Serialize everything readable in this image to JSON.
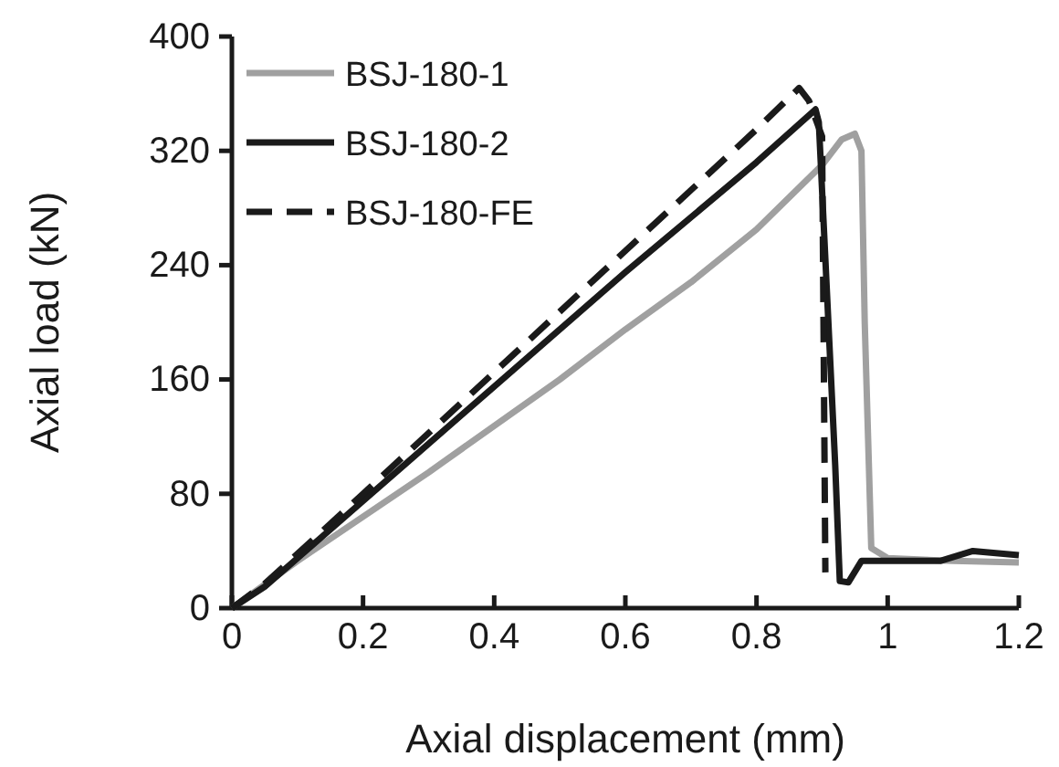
{
  "chart_data": {
    "type": "line",
    "xlabel": "Axial displacement (mm)",
    "ylabel": "Axial load (kN)",
    "xlim": [
      0,
      1.2
    ],
    "xticks": [
      0,
      0.2,
      0.4,
      0.6,
      0.8,
      1,
      1.2
    ],
    "ylim": [
      0,
      400
    ],
    "yticks": [
      0,
      80,
      160,
      240,
      320,
      400
    ],
    "grid": false,
    "legend": "top left",
    "marker": "none",
    "series": [
      {
        "name": "BSJ-180-1",
        "color": "#a0a0a0",
        "line_style": "solid",
        "x": [
          0,
          0.1,
          0.3,
          0.5,
          0.6,
          0.7,
          0.8,
          0.9,
          0.93,
          0.95,
          0.96,
          0.965,
          0.975,
          1.0,
          1.1,
          1.2
        ],
        "values": [
          0,
          33,
          95,
          160,
          195,
          228,
          265,
          310,
          328,
          332,
          320,
          200,
          42,
          35,
          33,
          32
        ]
      },
      {
        "name": "BSJ-180-2",
        "color": "#1a1a1a",
        "line_style": "solid",
        "x": [
          0,
          0.05,
          0.2,
          0.4,
          0.6,
          0.8,
          0.89,
          0.895,
          0.92,
          0.927,
          0.94,
          0.96,
          1.08,
          1.13,
          1.2
        ],
        "values": [
          0,
          15,
          75,
          155,
          235,
          312,
          349,
          340,
          100,
          19,
          18,
          33,
          33,
          40,
          37
        ]
      },
      {
        "name": "BSJ-180-FE",
        "color": "#1a1a1a",
        "line_style": "dashed",
        "x": [
          0,
          0.05,
          0.2,
          0.4,
          0.6,
          0.8,
          0.865,
          0.88,
          0.9,
          0.905
        ],
        "values": [
          0,
          17,
          80,
          165,
          250,
          335,
          364,
          355,
          330,
          25
        ]
      }
    ]
  }
}
